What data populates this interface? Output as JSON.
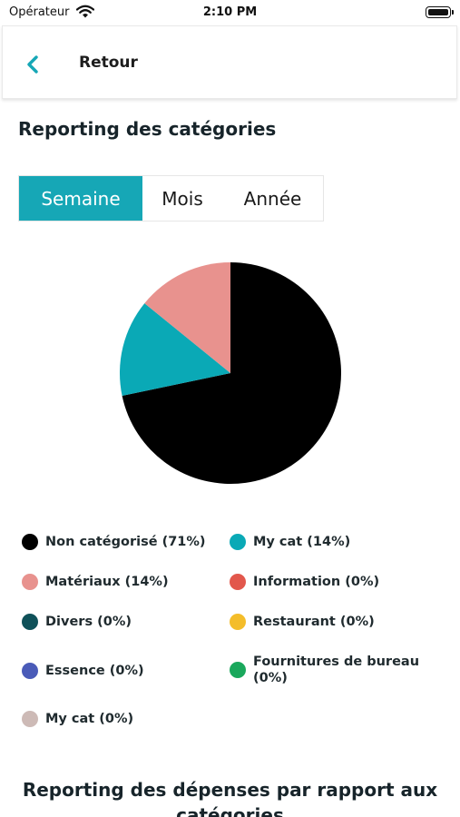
{
  "status_bar": {
    "carrier": "Opérateur",
    "time": "2:10 PM",
    "wifi_icon": "wifi-icon",
    "battery_icon": "battery-icon"
  },
  "header": {
    "back_icon": "chevron-left-icon",
    "back_label": "Retour",
    "accent_color": "#16a7b6"
  },
  "section_title": "Reporting des catégories",
  "period_tabs": [
    {
      "label": "Semaine",
      "selected": true
    },
    {
      "label": "Mois",
      "selected": false
    },
    {
      "label": "Année",
      "selected": false
    }
  ],
  "chart_data": {
    "type": "pie",
    "slices": [
      {
        "label": "Non catégorisé",
        "value": 71,
        "color": "#000000"
      },
      {
        "label": "My cat",
        "value": 14,
        "color": "#0aa9b6"
      },
      {
        "label": "Matériaux",
        "value": 14,
        "color": "#e8928e"
      }
    ],
    "legend": [
      {
        "label": "Non catégorisé (71%)",
        "color": "#000000"
      },
      {
        "label": "My cat (14%)",
        "color": "#0aa9b6"
      },
      {
        "label": "Matériaux (14%)",
        "color": "#e8928e"
      },
      {
        "label": "Information (0%)",
        "color": "#e2574c"
      },
      {
        "label": "Divers (0%)",
        "color": "#0f5159"
      },
      {
        "label": "Restaurant (0%)",
        "color": "#f4bd2a"
      },
      {
        "label": "Essence (0%)",
        "color": "#4a5bb8"
      },
      {
        "label": "Fournitures de bureau (0%)",
        "color": "#1aa85c"
      },
      {
        "label": "My cat (0%)",
        "color": "#cdbab6"
      }
    ],
    "legend_placement": "bottom"
  },
  "bottom_section_title": "Reporting des dépenses par rapport aux catégories"
}
